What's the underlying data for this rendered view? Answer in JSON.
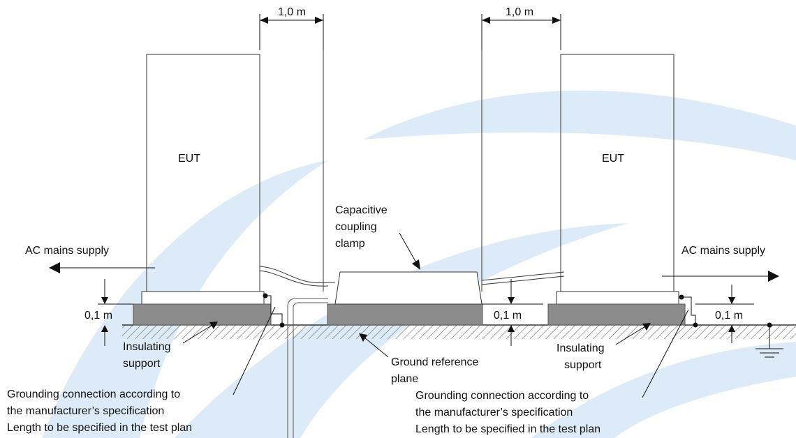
{
  "labels": {
    "dim_top_left": "1,0 m",
    "dim_top_right": "1,0 m",
    "eut_left": "EUT",
    "eut_right": "EUT",
    "ac_left": "AC mains supply",
    "ac_right": "AC mains supply",
    "clamp_line1": "Capacitive",
    "clamp_line2": "coupling",
    "clamp_line3": "clamp",
    "dim_left_height": "0,1 m",
    "dim_center_height": "0,1 m",
    "dim_right_height": "0,1 m",
    "insulating_left_line1": "Insulating",
    "insulating_left_line2": "support",
    "insulating_right_line1": "Insulating",
    "insulating_right_line2": "support",
    "ground_plane_line1": "Ground reference",
    "ground_plane_line2": "plane",
    "grounding_left_line1": "Grounding connection according to",
    "grounding_left_line2": "the manufacturer’s specification",
    "grounding_left_line3": "Length to be specified in the test plan",
    "grounding_right_line1": "Grounding connection according to",
    "grounding_right_line2": "the manufacturer’s specification",
    "grounding_right_line3": "Length to be specified in the test plan"
  },
  "colors": {
    "watermark": "#dcebf7",
    "support_fill": "#8c8c8c",
    "line": "#111111",
    "hatch": "#555555"
  }
}
